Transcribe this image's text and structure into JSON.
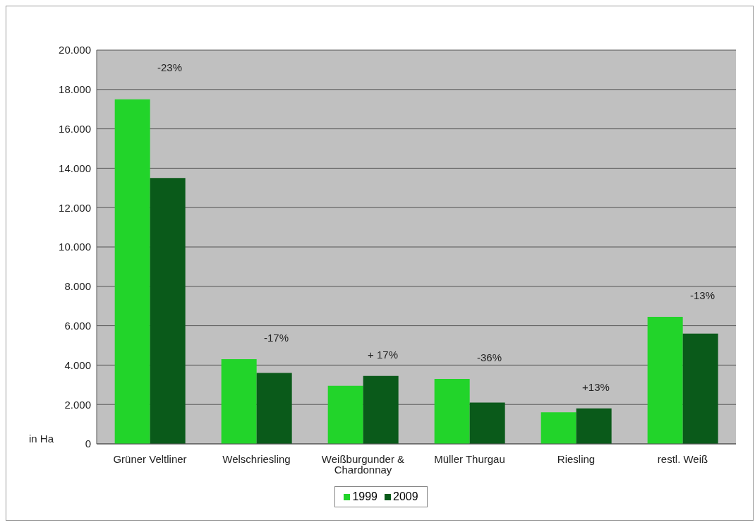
{
  "chart_data": {
    "type": "bar",
    "ylabel": "in Ha",
    "categories": [
      "Grüner Veltliner",
      "Welschriesling",
      "Weißburgunder & Chardonnay",
      "Müller Thurgau",
      "Riesling",
      "restl. Weiß"
    ],
    "series": [
      {
        "name": "1999",
        "color": "#22d42a",
        "values": [
          17500,
          4300,
          2950,
          3300,
          1600,
          6450
        ]
      },
      {
        "name": "2009",
        "color": "#0a5a1a",
        "values": [
          13500,
          3600,
          3450,
          2100,
          1800,
          5600
        ]
      }
    ],
    "ylim": [
      0,
      20000
    ],
    "yticks": [
      0,
      {
        "value": 2000,
        "label": "2.000"
      },
      {
        "value": 4000,
        "label": "4.000"
      },
      {
        "value": 6000,
        "label": "6.000"
      },
      {
        "value": 8000,
        "label": "8.000"
      },
      {
        "value": 10000,
        "label": "10.000"
      },
      {
        "value": 12000,
        "label": "12.000"
      },
      {
        "value": 14000,
        "label": "14.000"
      },
      {
        "value": 16000,
        "label": "16.000"
      },
      {
        "value": 18000,
        "label": "18.000"
      },
      {
        "value": 20000,
        "label": "20.000"
      }
    ],
    "annotations": [
      "-23%",
      "-17%",
      "+ 17%",
      "-36%",
      "+13%",
      "-13%"
    ],
    "grid": "y",
    "legend": "bottom"
  }
}
